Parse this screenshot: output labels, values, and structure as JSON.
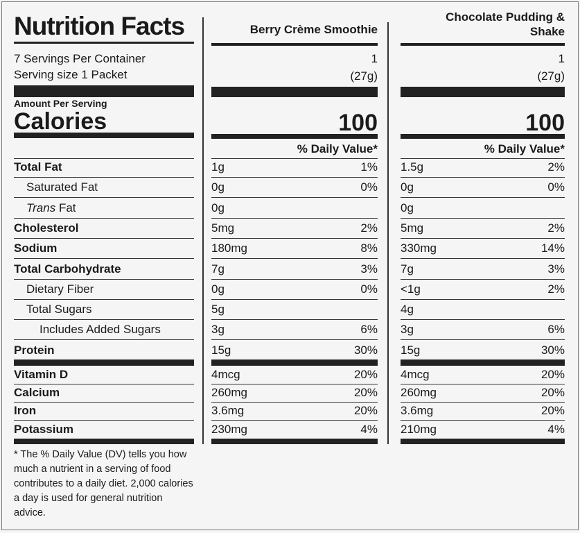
{
  "title": "Nutrition Facts",
  "servings_per_container": "7 Servings Per Container",
  "serving_size": "Serving size 1 Packet",
  "amount_per_serving": "Amount Per Serving",
  "calories_label": "Calories",
  "daily_value_header": "% Daily Value*",
  "nutrients": [
    {
      "name": "Total Fat",
      "indent": 0
    },
    {
      "name": "Saturated Fat",
      "indent": 1
    },
    {
      "name_italic": "Trans",
      "name": "Fat",
      "indent": 1
    },
    {
      "name": "Cholesterol",
      "indent": 0
    },
    {
      "name": "Sodium",
      "indent": 0
    },
    {
      "name": "Total Carbohydrate",
      "indent": 0
    },
    {
      "name": "Dietary Fiber",
      "indent": 1
    },
    {
      "name": "Total Sugars",
      "indent": 1
    },
    {
      "name": "Includes Added Sugars",
      "indent": 2
    },
    {
      "name": "Protein",
      "indent": 0
    }
  ],
  "vitamins": [
    {
      "name": "Vitamin D"
    },
    {
      "name": "Calcium"
    },
    {
      "name": "Iron"
    },
    {
      "name": "Potassium"
    }
  ],
  "products": [
    {
      "name": "Berry Crème Smoothie",
      "servings": "1",
      "serving_weight": "(27g)",
      "calories": 100,
      "nutrients": [
        [
          "1g",
          "1%"
        ],
        [
          "0g",
          "0%"
        ],
        [
          "0g",
          null
        ],
        [
          "5mg",
          "2%"
        ],
        [
          "180mg",
          "8%"
        ],
        [
          "7g",
          "3%"
        ],
        [
          "0g",
          "0%"
        ],
        [
          "5g",
          null
        ],
        [
          "3g",
          "6%"
        ],
        [
          "15g",
          "30%"
        ]
      ],
      "vitamins": [
        [
          "4mcg",
          "20%"
        ],
        [
          "260mg",
          "20%"
        ],
        [
          "3.6mg",
          "20%"
        ],
        [
          "230mg",
          "4%"
        ]
      ]
    },
    {
      "name": "Chocolate Pudding & Shake",
      "servings": "1",
      "serving_weight": "(27g)",
      "calories": 100,
      "nutrients": [
        [
          "1.5g",
          "2%"
        ],
        [
          "0g",
          "0%"
        ],
        [
          "0g",
          null
        ],
        [
          "5mg",
          "2%"
        ],
        [
          "330mg",
          "14%"
        ],
        [
          "7g",
          "3%"
        ],
        [
          "<1g",
          "2%"
        ],
        [
          "4g",
          null
        ],
        [
          "3g",
          "6%"
        ],
        [
          "15g",
          "30%"
        ]
      ],
      "vitamins": [
        [
          "4mcg",
          "20%"
        ],
        [
          "260mg",
          "20%"
        ],
        [
          "3.6mg",
          "20%"
        ],
        [
          "210mg",
          "4%"
        ]
      ]
    }
  ],
  "footnote": "* The % Daily Value (DV) tells you how much a nutrient in a serving of food contributes to a daily diet. 2,000 calories a day is used for general nutrition advice."
}
